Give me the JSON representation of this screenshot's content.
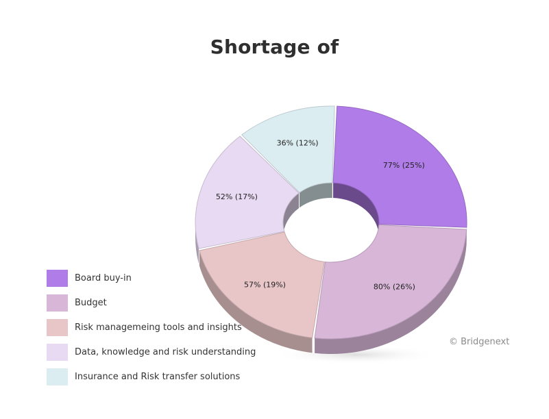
{
  "chart_data": {
    "type": "pie",
    "variant": "3d-donut",
    "title": "Shortage of",
    "categories": [
      "Board buy-in",
      "Budget",
      "Risk managemeing tools and insights",
      "Data, knowledge and risk understanding",
      "Insurance and Risk transfer solutions"
    ],
    "values": [
      77,
      80,
      57,
      52,
      36
    ],
    "shares": [
      25,
      26,
      19,
      17,
      12
    ],
    "labels": [
      "77% (25%)",
      "80% (26%)",
      "57% (19%)",
      "52% (17%)",
      "36% (12%)"
    ],
    "colors": [
      "#b07ce8",
      "#d7b6d8",
      "#e8c6c8",
      "#e8daf2",
      "#dcedf1"
    ],
    "legend_position": "bottom-left"
  },
  "watermark": "© Bridgenext"
}
